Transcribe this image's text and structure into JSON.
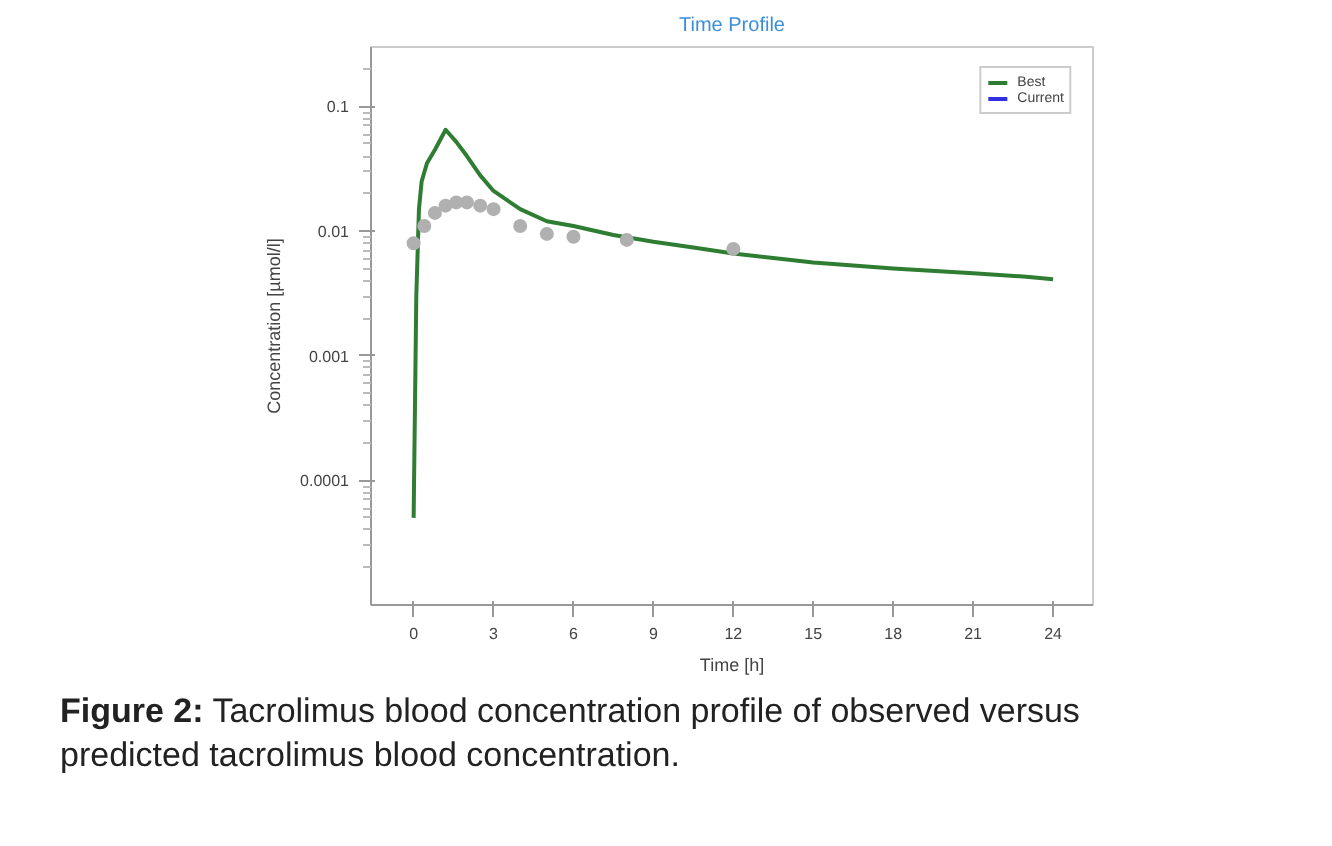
{
  "chart_data": {
    "type": "line",
    "title": "Time Profile",
    "xlabel": "Time [h]",
    "ylabel": "Concentration [µmol/l]",
    "log": "y",
    "xlim": [
      -1.6,
      25.5
    ],
    "ylim": [
      1e-05,
      0.3
    ],
    "xticks": [
      0,
      3,
      6,
      9,
      12,
      15,
      18,
      21,
      24
    ],
    "yticks": [
      0.1,
      0.01,
      0.001,
      0.0001
    ],
    "grid": false,
    "legend": "top right",
    "series": [
      {
        "name": "Best",
        "color": "#2e7d32",
        "x": [
          0,
          0.1,
          0.2,
          0.3,
          0.5,
          0.8,
          1.2,
          1.6,
          2,
          2.5,
          3,
          4,
          5,
          6,
          7.5,
          9,
          10.5,
          12,
          15,
          18,
          21,
          23,
          24
        ],
        "values": [
          5e-05,
          0.003,
          0.015,
          0.025,
          0.035,
          0.045,
          0.065,
          0.052,
          0.04,
          0.028,
          0.021,
          0.015,
          0.012,
          0.011,
          0.0093,
          0.0082,
          0.0074,
          0.0066,
          0.0056,
          0.005,
          0.0046,
          0.0043,
          0.0041
        ]
      },
      {
        "name": "Current",
        "color": "#3030e0",
        "type": "line"
      },
      {
        "color": "#b0b0b0",
        "type": "scatter",
        "marker": "circle",
        "x": [
          0,
          0.4,
          0.8,
          1.2,
          1.6,
          2,
          2.5,
          3,
          4,
          5,
          6,
          8,
          12
        ],
        "values": [
          0.008,
          0.011,
          0.014,
          0.016,
          0.017,
          0.017,
          0.016,
          0.015,
          0.011,
          0.0095,
          0.009,
          0.0085,
          0.0072
        ]
      }
    ],
    "annotations": [
      "Figure 2: Tacrolimus blood concentration profile of observed versus predicted tacrolimus blood concentration."
    ]
  }
}
